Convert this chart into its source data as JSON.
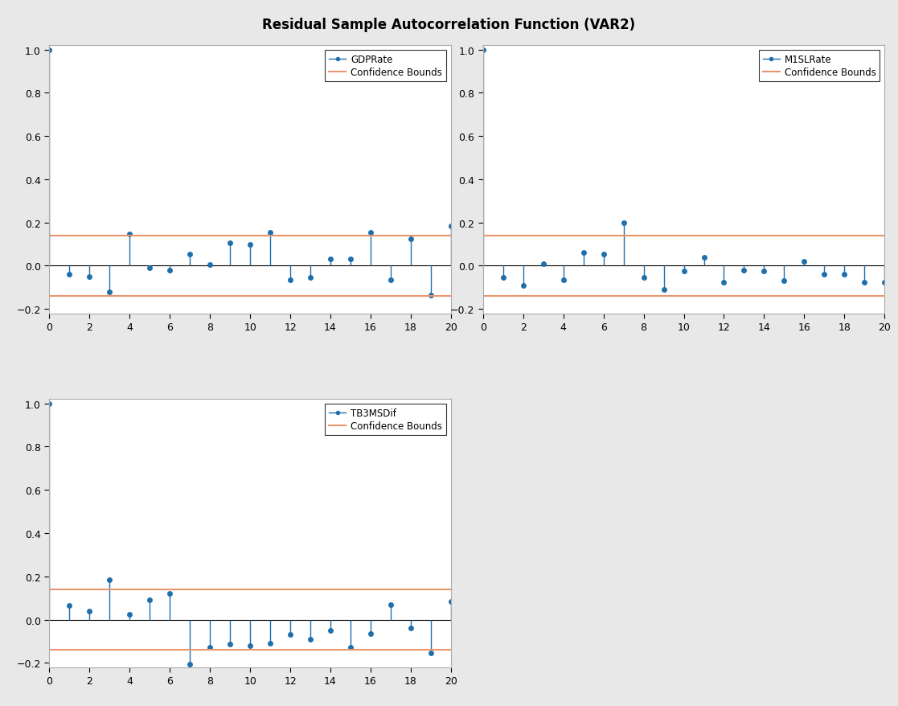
{
  "title": "Residual Sample Autocorrelation Function (VAR2)",
  "title_fontsize": 12,
  "background_color": "#e8e8e8",
  "subplot_bg": "#ffffff",
  "conf_bound": 0.138,
  "conf_color": "#e8956d",
  "line_color": "#1f6fad",
  "marker_color": "#1f6fad",
  "ylim": [
    -0.22,
    1.02
  ],
  "xlim": [
    0,
    20
  ],
  "xticks": [
    0,
    2,
    4,
    6,
    8,
    10,
    12,
    14,
    16,
    18,
    20
  ],
  "yticks": [
    -0.2,
    0,
    0.2,
    0.4,
    0.6,
    0.8,
    1.0
  ],
  "subplots": [
    {
      "label": "GDPRate",
      "lags": [
        0,
        1,
        2,
        3,
        4,
        5,
        6,
        7,
        8,
        9,
        10,
        11,
        12,
        13,
        14,
        15,
        16,
        17,
        18,
        19,
        20
      ],
      "acf": [
        1.0,
        -0.04,
        -0.05,
        -0.12,
        0.145,
        -0.01,
        -0.02,
        0.052,
        0.005,
        0.105,
        0.1,
        0.155,
        -0.065,
        -0.055,
        0.03,
        0.03,
        0.153,
        -0.065,
        0.125,
        -0.135,
        0.185
      ]
    },
    {
      "label": "M1SLRate",
      "lags": [
        0,
        1,
        2,
        3,
        4,
        5,
        6,
        7,
        8,
        9,
        10,
        11,
        12,
        13,
        14,
        15,
        16,
        17,
        18,
        19,
        20
      ],
      "acf": [
        1.0,
        -0.055,
        -0.09,
        0.01,
        -0.065,
        0.062,
        0.055,
        0.2,
        -0.055,
        -0.11,
        -0.025,
        0.04,
        -0.075,
        -0.02,
        -0.025,
        -0.07,
        0.02,
        -0.04,
        -0.04,
        -0.075,
        -0.075
      ]
    },
    {
      "label": "TB3MSDif",
      "lags": [
        0,
        1,
        2,
        3,
        4,
        5,
        6,
        7,
        8,
        9,
        10,
        11,
        12,
        13,
        14,
        15,
        16,
        17,
        18,
        19,
        20
      ],
      "acf": [
        1.0,
        0.065,
        0.04,
        0.185,
        0.025,
        0.09,
        0.12,
        -0.205,
        -0.13,
        -0.115,
        -0.12,
        -0.11,
        -0.07,
        -0.09,
        -0.05,
        -0.13,
        -0.065,
        0.07,
        -0.04,
        -0.155,
        0.085
      ]
    }
  ]
}
